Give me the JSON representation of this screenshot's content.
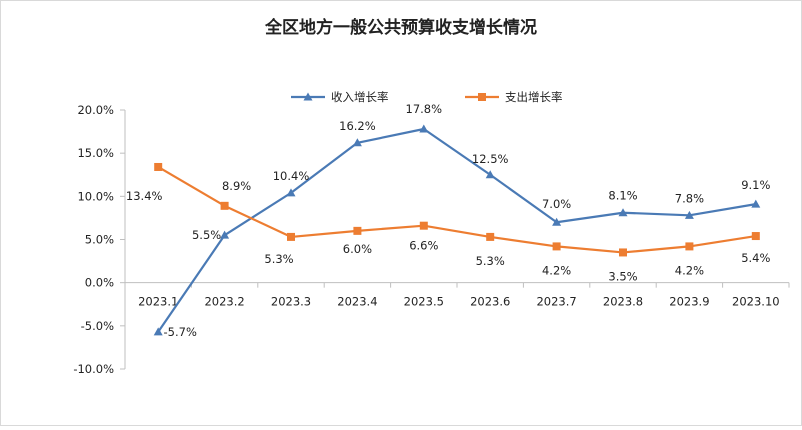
{
  "chart_data": {
    "type": "line",
    "title": "全区地方一般公共预算收支增长情况",
    "xlabel": "",
    "ylabel": "",
    "categories": [
      "2023.1",
      "2023.2",
      "2023.3",
      "2023.4",
      "2023.5",
      "2023.6",
      "2023.7",
      "2023.8",
      "2023.9",
      "2023.10"
    ],
    "ylim": [
      -10,
      20
    ],
    "yticks": [
      20,
      15,
      10,
      5,
      0,
      -5,
      -10
    ],
    "ytick_labels": [
      "20.0%",
      "15.0%",
      "10.0%",
      "5.0%",
      "0.0%",
      "-5.0%",
      "-10.0%"
    ],
    "grid": false,
    "legend_position": "top-center",
    "series": [
      {
        "name": "收入增长率",
        "color": "#4a7ab5",
        "marker": "triangle",
        "values": [
          -5.7,
          5.5,
          10.4,
          16.2,
          17.8,
          12.5,
          7.0,
          8.1,
          7.8,
          9.1
        ],
        "labels": [
          "-5.7%",
          "5.5%",
          "10.4%",
          "16.2%",
          "17.8%",
          "12.5%",
          "7.0%",
          "8.1%",
          "7.8%",
          "9.1%"
        ]
      },
      {
        "name": "支出增长率",
        "color": "#ed7d31",
        "marker": "square",
        "values": [
          13.4,
          8.9,
          5.3,
          6.0,
          6.6,
          5.3,
          4.2,
          3.5,
          4.2,
          5.4
        ],
        "labels": [
          "13.4%",
          "8.9%",
          "5.3%",
          "6.0%",
          "6.6%",
          "5.3%",
          "4.2%",
          "3.5%",
          "4.2%",
          "5.4%"
        ]
      }
    ]
  }
}
